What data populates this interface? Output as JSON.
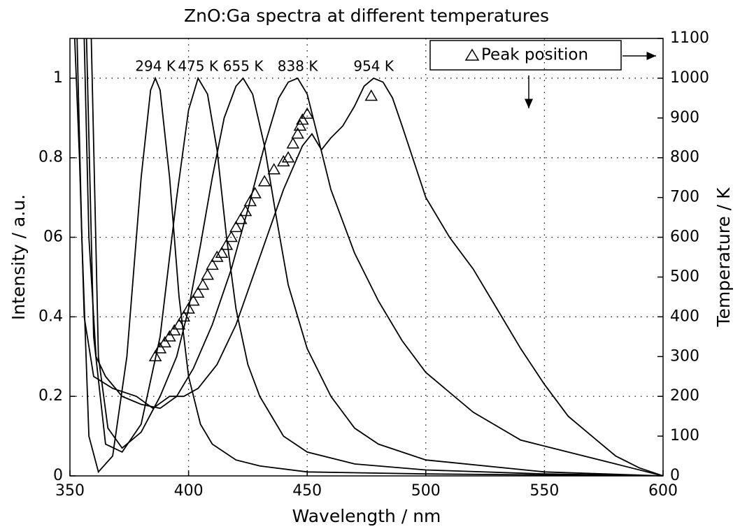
{
  "chart_data": {
    "type": "line",
    "title": "ZnO:Ga spectra at different temperatures",
    "x_label": "Wavelength / nm",
    "y_label": "Intensity / a.u.",
    "y2_label": "Temperature / K",
    "xlim": [
      350,
      600
    ],
    "xticks": [
      350,
      400,
      450,
      500,
      550,
      600
    ],
    "ylim": [
      0,
      1.1
    ],
    "yticks": [
      0,
      0.2,
      0.4,
      {
        "value": 0.6,
        "label": "06"
      },
      0.8,
      1
    ],
    "y2lim": [
      0,
      1100
    ],
    "y2ticks": [
      0,
      100,
      200,
      300,
      400,
      500,
      600,
      700,
      800,
      900,
      1000,
      1100
    ],
    "grid": true,
    "series": [
      {
        "name": "294 K",
        "color": "#000000",
        "x": [
          353,
          355,
          358,
          362,
          368,
          374,
          380,
          384,
          386,
          388,
          392,
          396,
          400,
          405,
          410,
          420,
          430,
          450,
          500,
          600
        ],
        "values": [
          1.1,
          0.6,
          0.1,
          0.01,
          0.05,
          0.3,
          0.75,
          0.97,
          1.0,
          0.97,
          0.75,
          0.45,
          0.25,
          0.13,
          0.08,
          0.04,
          0.025,
          0.01,
          0.005,
          0
        ]
      },
      {
        "name": "475 K",
        "color": "#000000",
        "x": [
          357,
          360,
          365,
          372,
          380,
          388,
          395,
          400,
          404,
          408,
          412,
          416,
          420,
          425,
          430,
          440,
          450,
          470,
          500,
          550,
          600
        ],
        "values": [
          1.1,
          0.35,
          0.08,
          0.06,
          0.13,
          0.35,
          0.7,
          0.92,
          1.0,
          0.96,
          0.82,
          0.6,
          0.42,
          0.28,
          0.2,
          0.1,
          0.06,
          0.03,
          0.015,
          0.005,
          0
        ]
      },
      {
        "name": "655 K",
        "color": "#000000",
        "x": [
          359,
          362,
          366,
          372,
          380,
          388,
          395,
          400,
          405,
          410,
          415,
          420,
          423,
          427,
          432,
          437,
          442,
          450,
          460,
          470,
          480,
          500,
          550,
          600
        ],
        "values": [
          1.1,
          0.3,
          0.12,
          0.07,
          0.11,
          0.2,
          0.3,
          0.42,
          0.58,
          0.75,
          0.9,
          0.98,
          1.0,
          0.96,
          0.83,
          0.65,
          0.48,
          0.32,
          0.2,
          0.12,
          0.08,
          0.04,
          0.01,
          0
        ]
      },
      {
        "name": "838 K",
        "color": "#000000",
        "x": [
          356,
          358,
          361,
          365,
          372,
          380,
          388,
          395,
          402,
          410,
          418,
          425,
          432,
          438,
          442,
          446,
          450,
          455,
          460,
          470,
          480,
          490,
          500,
          520,
          540,
          560,
          580,
          600
        ],
        "values": [
          1.1,
          0.6,
          0.3,
          0.25,
          0.2,
          0.18,
          0.17,
          0.2,
          0.27,
          0.38,
          0.52,
          0.67,
          0.83,
          0.95,
          0.99,
          1.0,
          0.96,
          0.84,
          0.72,
          0.56,
          0.44,
          0.34,
          0.26,
          0.16,
          0.09,
          0.06,
          0.03,
          0
        ]
      },
      {
        "name": "954 K",
        "color": "#000000",
        "x": [
          352,
          354,
          356,
          360,
          368,
          378,
          385,
          392,
          398,
          404,
          412,
          420,
          430,
          440,
          448,
          452,
          456,
          460,
          465,
          470,
          474,
          478,
          482,
          486,
          490,
          500,
          510,
          520,
          530,
          540,
          550,
          560,
          570,
          580,
          590,
          600
        ],
        "values": [
          1.1,
          0.8,
          0.4,
          0.25,
          0.22,
          0.2,
          0.17,
          0.2,
          0.2,
          0.22,
          0.28,
          0.38,
          0.55,
          0.72,
          0.83,
          0.86,
          0.82,
          0.85,
          0.88,
          0.93,
          0.98,
          1.0,
          0.99,
          0.95,
          0.88,
          0.7,
          0.6,
          0.52,
          0.42,
          0.32,
          0.23,
          0.15,
          0.1,
          0.05,
          0.02,
          0
        ]
      },
      {
        "name": "Peak position",
        "type": "scatter",
        "axis": "y2",
        "color": "#000000",
        "x": [
          386,
          388,
          390,
          392,
          394,
          396,
          398,
          400,
          402,
          404,
          406,
          408,
          410,
          412,
          414,
          416,
          418,
          420,
          422,
          424,
          426,
          428,
          432,
          436,
          440,
          442,
          444,
          446,
          447,
          448,
          450,
          477
        ],
        "values": [
          300,
          320,
          335,
          350,
          365,
          380,
          400,
          420,
          440,
          460,
          480,
          505,
          530,
          550,
          560,
          580,
          600,
          625,
          645,
          665,
          690,
          710,
          740,
          770,
          790,
          800,
          835,
          860,
          880,
          895,
          910,
          955
        ]
      }
    ]
  }
}
